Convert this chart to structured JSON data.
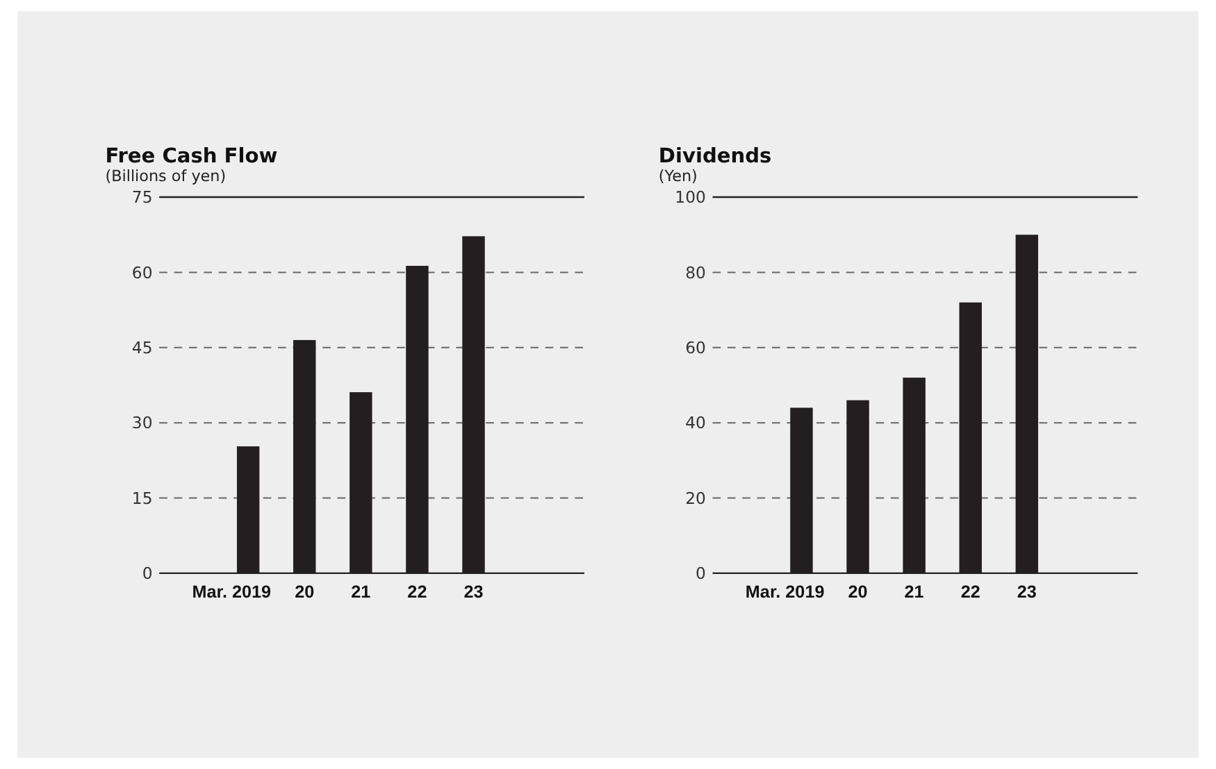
{
  "chart_data": [
    {
      "type": "bar",
      "title": "Free Cash Flow",
      "ylabel": "(Billions of yen)",
      "categories": [
        "Mar. 2019",
        "20",
        "21",
        "22",
        "23"
      ],
      "values": [
        25.3,
        46.5,
        36.1,
        61.3,
        67.2
      ],
      "color": "#231f20",
      "ylim": [
        0,
        75
      ],
      "yticks": [
        0,
        15,
        30,
        45,
        60,
        75
      ],
      "grid": "y"
    },
    {
      "type": "bar",
      "title": "Dividends",
      "ylabel": "(Yen)",
      "categories": [
        "Mar. 2019",
        "20",
        "21",
        "22",
        "23"
      ],
      "values": [
        44,
        46,
        52,
        72,
        90
      ],
      "color": "#231f20",
      "ylim": [
        0,
        100
      ],
      "yticks": [
        0,
        20,
        40,
        60,
        80,
        100
      ],
      "grid": "y"
    }
  ]
}
